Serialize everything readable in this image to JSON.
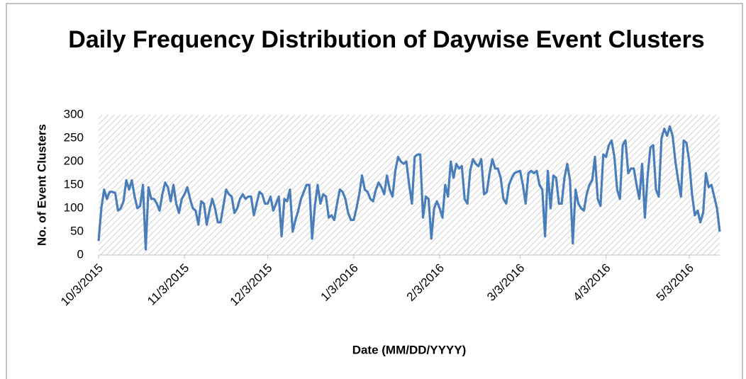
{
  "chart_data": {
    "type": "line",
    "title": "Daily Frequency Distribution of Daywise Event Clusters",
    "x_label": "Date (MM/DD/YYYY)",
    "y_label": "No. of Event Clusters",
    "categories": [
      "10/3/2015",
      null,
      null,
      null,
      null,
      null,
      null,
      null,
      null,
      null,
      null,
      null,
      null,
      null,
      null,
      null,
      null,
      null,
      null,
      null,
      null,
      null,
      null,
      null,
      null,
      null,
      null,
      null,
      null,
      null,
      null,
      "11/3/2015",
      null,
      null,
      null,
      null,
      null,
      null,
      null,
      null,
      null,
      null,
      null,
      null,
      null,
      null,
      null,
      null,
      null,
      null,
      null,
      null,
      null,
      null,
      null,
      null,
      null,
      null,
      null,
      null,
      null,
      "12/3/2015",
      null,
      null,
      null,
      null,
      null,
      null,
      null,
      null,
      null,
      null,
      null,
      null,
      null,
      null,
      null,
      null,
      null,
      null,
      null,
      null,
      null,
      null,
      null,
      null,
      null,
      null,
      null,
      null,
      null,
      null,
      "1/3/2016",
      null,
      null,
      null,
      null,
      null,
      null,
      null,
      null,
      null,
      null,
      null,
      null,
      null,
      null,
      null,
      null,
      null,
      null,
      null,
      null,
      null,
      null,
      null,
      null,
      null,
      null,
      null,
      null,
      null,
      null,
      "2/3/2016",
      null,
      null,
      null,
      null,
      null,
      null,
      null,
      null,
      null,
      null,
      null,
      null,
      null,
      null,
      null,
      null,
      null,
      null,
      null,
      null,
      null,
      null,
      null,
      null,
      null,
      null,
      null,
      null,
      "3/3/2016",
      null,
      null,
      null,
      null,
      null,
      null,
      null,
      null,
      null,
      null,
      null,
      null,
      null,
      null,
      null,
      null,
      null,
      null,
      null,
      null,
      null,
      null,
      null,
      null,
      null,
      null,
      null,
      null,
      null,
      null,
      "4/3/2016",
      null,
      null,
      null,
      null,
      null,
      null,
      null,
      null,
      null,
      null,
      null,
      null,
      null,
      null,
      null,
      null,
      null,
      null,
      null,
      null,
      null,
      null,
      null,
      null,
      null,
      null,
      null,
      null,
      null,
      "5/3/2016",
      null,
      null,
      null,
      null,
      null,
      null,
      null,
      null,
      null,
      null,
      null
    ],
    "values": [
      30,
      100,
      140,
      120,
      135,
      135,
      133,
      95,
      100,
      115,
      160,
      140,
      160,
      125,
      100,
      105,
      150,
      12,
      145,
      120,
      120,
      110,
      95,
      130,
      155,
      145,
      115,
      150,
      110,
      90,
      120,
      130,
      145,
      120,
      100,
      95,
      65,
      115,
      110,
      65,
      95,
      120,
      100,
      70,
      70,
      105,
      140,
      130,
      125,
      90,
      100,
      120,
      130,
      120,
      125,
      125,
      85,
      110,
      135,
      130,
      110,
      110,
      125,
      95,
      110,
      125,
      40,
      120,
      115,
      140,
      50,
      75,
      95,
      120,
      135,
      150,
      150,
      35,
      105,
      150,
      110,
      130,
      125,
      80,
      85,
      75,
      110,
      140,
      135,
      120,
      90,
      75,
      75,
      100,
      130,
      170,
      140,
      135,
      120,
      115,
      140,
      155,
      145,
      130,
      170,
      140,
      125,
      180,
      210,
      200,
      195,
      200,
      150,
      110,
      210,
      215,
      215,
      80,
      125,
      120,
      35,
      100,
      115,
      100,
      80,
      150,
      125,
      200,
      165,
      195,
      185,
      190,
      120,
      110,
      180,
      205,
      195,
      190,
      205,
      130,
      135,
      175,
      205,
      185,
      185,
      165,
      120,
      110,
      150,
      165,
      175,
      178,
      180,
      150,
      110,
      175,
      180,
      175,
      180,
      150,
      140,
      40,
      180,
      100,
      170,
      165,
      110,
      110,
      165,
      195,
      160,
      25,
      140,
      110,
      100,
      95,
      130,
      150,
      160,
      210,
      120,
      105,
      215,
      210,
      235,
      245,
      210,
      140,
      120,
      235,
      245,
      175,
      185,
      185,
      150,
      120,
      195,
      80,
      170,
      230,
      235,
      140,
      125,
      250,
      270,
      255,
      275,
      255,
      200,
      160,
      125,
      245,
      240,
      200,
      130,
      85,
      95,
      70,
      90,
      175,
      145,
      150,
      125,
      100,
      50
    ],
    "color": "#4a7ebb",
    "ylim": [
      0,
      300
    ],
    "yticks": [
      0,
      50,
      100,
      150,
      200,
      250,
      300
    ],
    "grid": false
  }
}
